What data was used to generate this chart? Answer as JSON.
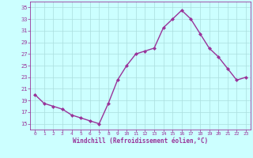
{
  "x": [
    0,
    1,
    2,
    3,
    4,
    5,
    6,
    7,
    8,
    9,
    10,
    11,
    12,
    13,
    14,
    15,
    16,
    17,
    18,
    19,
    20,
    21,
    22,
    23
  ],
  "y": [
    20.0,
    18.5,
    18.0,
    17.5,
    16.5,
    16.0,
    15.5,
    15.0,
    18.5,
    22.5,
    25.0,
    27.0,
    27.5,
    28.0,
    31.5,
    33.0,
    34.5,
    33.0,
    30.5,
    28.0,
    26.5,
    24.5,
    22.5,
    23.0
  ],
  "line_color": "#993399",
  "marker": "D",
  "marker_size": 2.0,
  "bg_color": "#ccffff",
  "grid_color": "#aadddd",
  "xlabel": "Windchill (Refroidissement éolien,°C)",
  "xlabel_color": "#993399",
  "tick_color": "#993399",
  "ylim": [
    14,
    36
  ],
  "yticks": [
    15,
    17,
    19,
    21,
    23,
    25,
    27,
    29,
    31,
    33,
    35
  ],
  "xticks": [
    0,
    1,
    2,
    3,
    4,
    5,
    6,
    7,
    8,
    9,
    10,
    11,
    12,
    13,
    14,
    15,
    16,
    17,
    18,
    19,
    20,
    21,
    22,
    23
  ],
  "line_width": 1.0
}
